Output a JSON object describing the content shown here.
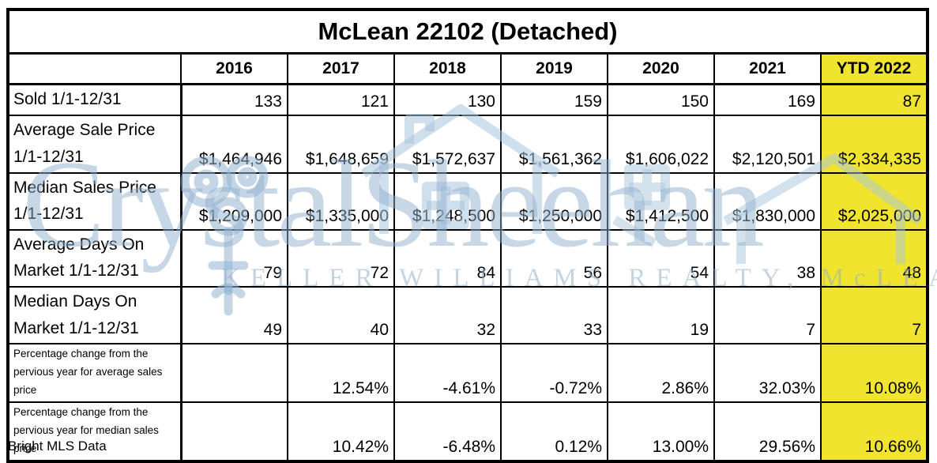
{
  "title": "McLean 22102 (Detached)",
  "columns": [
    "2016",
    "2017",
    "2018",
    "2019",
    "2020",
    "2021",
    "YTD 2022"
  ],
  "rows": [
    {
      "label": "Sold 1/1-12/31",
      "values": [
        "133",
        "121",
        "130",
        "159",
        "150",
        "169",
        "87"
      ]
    },
    {
      "label": "Average Sale Price\n1/1-12/31",
      "values": [
        "$1,464,946",
        "$1,648,659",
        "$1,572,637",
        "$1,561,362",
        "$1,606,022",
        "$2,120,501",
        "$2,334,335"
      ]
    },
    {
      "label": "Median Sales Price\n1/1-12/31",
      "values": [
        "$1,209,000",
        "$1,335,000",
        "$1,248,500",
        "$1,250,000",
        "$1,412,500",
        "$1,830,000",
        "$2,025,000"
      ]
    },
    {
      "label": "Average Days On\nMarket 1/1-12/31",
      "values": [
        "79",
        "72",
        "84",
        "56",
        "54",
        "38",
        "48"
      ]
    },
    {
      "label": "Median Days On\nMarket  1/1-12/31",
      "values": [
        "49",
        "40",
        "32",
        "33",
        "19",
        "7",
        "7"
      ]
    },
    {
      "label": "Percentage change from the\npervious year for average sales\nprice",
      "values": [
        "",
        "12.54%",
        "-4.61%",
        "-0.72%",
        "2.86%",
        "32.03%",
        "10.08%"
      ]
    },
    {
      "label": "Percentage change from the\npervious year for median sales\nprice",
      "values": [
        "",
        "10.42%",
        "-6.48%",
        "0.12%",
        "13.00%",
        "29.56%",
        "10.66%"
      ]
    }
  ],
  "footer_note": "Bright MLS Data",
  "watermark": {
    "name": "CrystalSheehan",
    "subtitle": "KELLER WILLIAMS REALTY, McLEAN",
    "icons": [
      "ornate-key-icon",
      "house-icon",
      "house-icon"
    ]
  },
  "colors": {
    "highlight_yellow": "#F0E42F",
    "watermark_blue": "#90AFCD",
    "border_black": "#000000"
  }
}
